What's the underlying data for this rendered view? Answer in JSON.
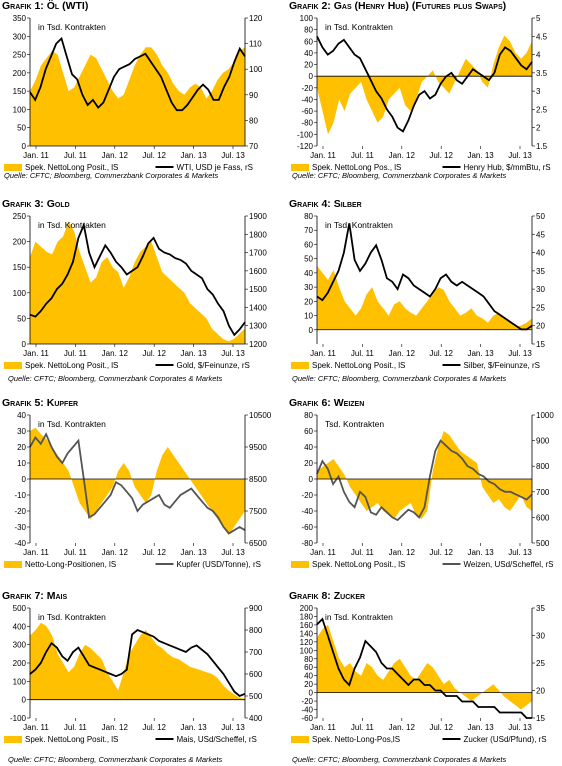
{
  "source_text": "Quelle: CFTC; Bloomberg, Commerzbank Corporates & Markets",
  "colors": {
    "area": "#ffc000",
    "line": "#000000",
    "line_alt": "#555555",
    "axis": "#000000"
  },
  "x_tick_labels": [
    "Jan. 11",
    "Jul. 11",
    "Jan. 12",
    "Jul. 12",
    "Jan. 13",
    "Jul. 13"
  ],
  "chart_data": [
    {
      "type": "area",
      "title_prefix": "Grafik 1:",
      "title": "Öl (WTI)",
      "unit_label": "in Tsd. Kontrakten",
      "ylim_left": [
        0,
        350
      ],
      "yticks_left": [
        0,
        50,
        100,
        150,
        200,
        250,
        300,
        350
      ],
      "ylim_right": [
        70,
        120
      ],
      "yticks_right": [
        70,
        80,
        90,
        100,
        110,
        120
      ],
      "series": [
        {
          "name": "Spek. NettoLong Posit., lS",
          "axis": "left",
          "kind": "area",
          "values": [
            150,
            180,
            220,
            240,
            260,
            250,
            200,
            150,
            160,
            190,
            220,
            250,
            240,
            210,
            180,
            150,
            130,
            140,
            180,
            220,
            250,
            270,
            270,
            250,
            220,
            200,
            170,
            150,
            140,
            160,
            170,
            160,
            130,
            150,
            180,
            200,
            210,
            230,
            260,
            270
          ]
        },
        {
          "name": "WTI, USD je Fass, rS",
          "axis": "right",
          "kind": "line",
          "values": [
            91,
            88,
            93,
            100,
            105,
            110,
            112,
            105,
            98,
            96,
            90,
            86,
            88,
            85,
            87,
            92,
            97,
            100,
            101,
            102,
            104,
            105,
            106,
            103,
            100,
            97,
            92,
            87,
            84,
            84,
            86,
            89,
            92,
            94,
            92,
            88,
            88,
            93,
            97,
            103,
            108,
            105
          ]
        }
      ]
    },
    {
      "type": "area",
      "title_prefix": "Grafik 2:",
      "title": "Gas (Henry Hub) (Futures plus Swaps)",
      "unit_label": "in Tsd. Kontrakten",
      "ylim_left": [
        -120,
        100
      ],
      "yticks_left": [
        -120,
        -100,
        -80,
        -60,
        -40,
        -20,
        0,
        20,
        40,
        60,
        80,
        100
      ],
      "ylim_right": [
        1.5,
        5.0
      ],
      "yticks_right": [
        1.5,
        2.0,
        2.5,
        3.0,
        3.5,
        4.0,
        4.5,
        5.0
      ],
      "series": [
        {
          "name": "Spek. NettoLong Pos., lS",
          "axis": "left",
          "kind": "area",
          "values": [
            -20,
            -60,
            -100,
            -80,
            -40,
            -60,
            -30,
            -20,
            -10,
            -40,
            -60,
            -80,
            -70,
            -40,
            -30,
            -20,
            -50,
            -60,
            -40,
            -10,
            0,
            10,
            -10,
            -20,
            -30,
            -10,
            10,
            30,
            20,
            10,
            -10,
            -20,
            20,
            50,
            70,
            60,
            40,
            30,
            40,
            60
          ]
        },
        {
          "name": "Henry Hub, $/mmBtu, rS",
          "axis": "right",
          "kind": "line",
          "values": [
            4.5,
            4.2,
            4.0,
            4.1,
            4.3,
            4.4,
            4.2,
            4.0,
            3.9,
            3.6,
            3.3,
            3.0,
            2.8,
            2.5,
            2.3,
            2.0,
            1.9,
            2.2,
            2.6,
            2.9,
            3.0,
            2.8,
            2.9,
            3.2,
            3.4,
            3.5,
            3.3,
            3.2,
            3.4,
            3.6,
            3.5,
            3.4,
            3.3,
            3.5,
            4.0,
            4.2,
            4.1,
            3.9,
            3.7,
            3.6,
            3.8
          ]
        }
      ]
    },
    {
      "type": "area",
      "title_prefix": "Grafik 3:",
      "title": "Gold",
      "unit_label": "in Tsd. Kontrakten",
      "ylim_left": [
        0,
        250
      ],
      "yticks_left": [
        0,
        50,
        100,
        150,
        200,
        250
      ],
      "ylim_right": [
        1200,
        1900
      ],
      "yticks_right": [
        1200,
        1300,
        1400,
        1500,
        1600,
        1700,
        1800,
        1900
      ],
      "series": [
        {
          "name": "Spek. NettoLong Posit., lS",
          "axis": "left",
          "kind": "area",
          "values": [
            170,
            200,
            190,
            180,
            175,
            200,
            210,
            240,
            220,
            180,
            150,
            120,
            130,
            160,
            170,
            150,
            140,
            110,
            130,
            160,
            180,
            190,
            200,
            170,
            140,
            130,
            120,
            110,
            100,
            80,
            70,
            60,
            50,
            30,
            20,
            10,
            5,
            10,
            20,
            30
          ]
        },
        {
          "name": "Gold, $/Feinunze, rS",
          "axis": "right",
          "kind": "line",
          "values": [
            1360,
            1350,
            1380,
            1420,
            1450,
            1500,
            1530,
            1580,
            1650,
            1780,
            1850,
            1700,
            1620,
            1680,
            1740,
            1700,
            1650,
            1620,
            1580,
            1600,
            1620,
            1680,
            1750,
            1780,
            1720,
            1700,
            1690,
            1670,
            1660,
            1640,
            1600,
            1580,
            1560,
            1500,
            1470,
            1420,
            1380,
            1300,
            1250,
            1280,
            1320
          ]
        }
      ]
    },
    {
      "type": "area",
      "title_prefix": "Grafik 4:",
      "title": "Silber",
      "unit_label": "in Tsd. Kontrakten",
      "ylim_left": [
        -10,
        80
      ],
      "yticks_left": [
        0,
        10,
        20,
        30,
        40,
        50,
        60,
        70,
        80
      ],
      "ylim_right": [
        15,
        50
      ],
      "yticks_right": [
        15,
        20,
        25,
        30,
        35,
        40,
        45,
        50
      ],
      "series": [
        {
          "name": "Spek. NettoLong Posit., lS",
          "axis": "left",
          "kind": "area",
          "values": [
            45,
            40,
            35,
            42,
            30,
            20,
            15,
            10,
            15,
            25,
            30,
            20,
            15,
            10,
            18,
            20,
            15,
            12,
            10,
            15,
            20,
            25,
            30,
            28,
            20,
            15,
            10,
            12,
            15,
            10,
            8,
            5,
            10,
            12,
            8,
            5,
            2,
            3,
            5,
            8
          ]
        },
        {
          "name": "Silber, $/Feinunze, rS",
          "axis": "right",
          "kind": "line",
          "values": [
            28,
            27,
            29,
            32,
            35,
            40,
            48,
            38,
            35,
            37,
            40,
            42,
            38,
            33,
            32,
            30,
            34,
            33,
            31,
            30,
            29,
            28,
            30,
            33,
            34,
            32,
            31,
            32,
            31,
            30,
            29,
            28,
            26,
            24,
            23,
            22,
            21,
            20,
            19,
            19,
            20
          ]
        }
      ]
    },
    {
      "type": "area",
      "title_prefix": "Grafik 5:",
      "title": "Kupfer",
      "unit_label": "in Tsd. Kontrakten",
      "ylim_left": [
        -40,
        40
      ],
      "yticks_left": [
        -40,
        -30,
        -20,
        -10,
        0,
        10,
        20,
        30,
        40
      ],
      "ylim_right": [
        6500,
        10500
      ],
      "yticks_right": [
        6500,
        7500,
        8500,
        9500,
        10500
      ],
      "series": [
        {
          "name": "Netto-Long-Positionen, lS",
          "axis": "left",
          "kind": "area",
          "values": [
            30,
            32,
            28,
            25,
            20,
            15,
            10,
            5,
            -5,
            -15,
            -20,
            -25,
            -20,
            -15,
            -10,
            -5,
            5,
            10,
            5,
            -5,
            -10,
            -15,
            -10,
            5,
            15,
            20,
            15,
            10,
            5,
            0,
            -5,
            -10,
            -15,
            -20,
            -25,
            -30,
            -35,
            -30,
            -25,
            -20
          ]
        },
        {
          "name": "Kupfer (USD/Tonne), rS",
          "axis": "right",
          "kind": "line",
          "values": [
            9500,
            9800,
            9600,
            9900,
            9500,
            9200,
            9000,
            9300,
            9500,
            9700,
            8500,
            7300,
            7400,
            7600,
            7800,
            8000,
            8400,
            8300,
            8100,
            7900,
            7500,
            7700,
            7800,
            7900,
            8000,
            7700,
            7600,
            7800,
            8000,
            8100,
            8200,
            8000,
            7800,
            7600,
            7500,
            7300,
            7000,
            6800,
            6900,
            7000,
            6900
          ]
        }
      ]
    },
    {
      "type": "area",
      "title_prefix": "Grafik 6:",
      "title": "Weizen",
      "unit_label": "Tsd. Kontrakten",
      "ylim_left": [
        -80,
        80
      ],
      "yticks_left": [
        -80,
        -60,
        -40,
        -20,
        0,
        20,
        40,
        60,
        80
      ],
      "ylim_right": [
        500,
        1000
      ],
      "yticks_right": [
        500,
        600,
        700,
        800,
        900,
        1000
      ],
      "series": [
        {
          "name": "Spek. NettoLong Posit., lS",
          "axis": "left",
          "kind": "area",
          "values": [
            10,
            15,
            20,
            25,
            15,
            5,
            -10,
            -20,
            -30,
            -40,
            -35,
            -30,
            -40,
            -45,
            -50,
            -40,
            -35,
            -30,
            -45,
            -50,
            -40,
            10,
            40,
            60,
            55,
            45,
            35,
            30,
            25,
            20,
            -10,
            -20,
            -30,
            -25,
            -35,
            -40,
            -30,
            -20,
            -35,
            -40
          ]
        },
        {
          "name": "Weizen, USd/Scheffel, rS",
          "axis": "right",
          "kind": "line",
          "values": [
            770,
            820,
            790,
            730,
            760,
            700,
            660,
            640,
            700,
            680,
            620,
            610,
            640,
            620,
            600,
            590,
            610,
            630,
            620,
            600,
            640,
            760,
            860,
            900,
            880,
            860,
            850,
            830,
            800,
            790,
            770,
            760,
            740,
            730,
            710,
            700,
            700,
            690,
            680,
            670,
            690
          ]
        }
      ]
    },
    {
      "type": "area",
      "title_prefix": "Grafik 7:",
      "title": "Mais",
      "unit_label": "in Tsd. Kontrakten",
      "ylim_left": [
        -100,
        500
      ],
      "yticks_left": [
        -100,
        0,
        100,
        200,
        300,
        400,
        500
      ],
      "ylim_right": [
        400,
        900
      ],
      "yticks_right": [
        400,
        500,
        600,
        700,
        800,
        900
      ],
      "series": [
        {
          "name": "Spek. NettoLong Posit., lS",
          "axis": "left",
          "kind": "area",
          "values": [
            350,
            380,
            420,
            400,
            350,
            250,
            200,
            150,
            180,
            250,
            300,
            280,
            250,
            220,
            150,
            100,
            50,
            150,
            250,
            300,
            350,
            380,
            340,
            300,
            280,
            250,
            230,
            220,
            200,
            180,
            170,
            160,
            150,
            140,
            120,
            80,
            50,
            30,
            10,
            5
          ]
        },
        {
          "name": "Mais, USd/Scheffel, rS",
          "axis": "right",
          "kind": "line",
          "values": [
            600,
            620,
            650,
            700,
            740,
            720,
            680,
            660,
            700,
            720,
            680,
            640,
            630,
            620,
            610,
            600,
            590,
            600,
            620,
            780,
            800,
            790,
            780,
            770,
            750,
            740,
            730,
            720,
            710,
            700,
            720,
            730,
            710,
            690,
            660,
            630,
            600,
            560,
            520,
            500,
            510
          ]
        }
      ]
    },
    {
      "type": "area",
      "title_prefix": "Grafik 8:",
      "title": "Zucker",
      "unit_label": "in Tsd. Kontrakten",
      "ylim_left": [
        -60,
        200
      ],
      "yticks_left": [
        -60,
        -40,
        -20,
        0,
        20,
        40,
        60,
        80,
        100,
        120,
        140,
        160,
        180,
        200
      ],
      "ylim_right": [
        15,
        35
      ],
      "yticks_right": [
        15,
        20,
        25,
        30,
        35
      ],
      "series": [
        {
          "name": "Spek. Netto-Long-Pos,lS",
          "axis": "left",
          "kind": "area",
          "values": [
            130,
            150,
            160,
            120,
            80,
            60,
            70,
            50,
            40,
            70,
            60,
            40,
            30,
            50,
            70,
            80,
            60,
            40,
            30,
            50,
            70,
            60,
            40,
            20,
            30,
            10,
            0,
            -10,
            -20,
            -10,
            0,
            10,
            20,
            5,
            -10,
            -20,
            -30,
            -40,
            -30,
            -20
          ]
        },
        {
          "name": "Zucker (USd/Pfund), rS",
          "axis": "right",
          "kind": "line",
          "values": [
            32,
            33,
            30,
            27,
            24,
            22,
            21,
            24,
            26,
            29,
            28,
            27,
            25,
            24,
            24,
            23,
            22,
            21,
            22,
            22,
            21,
            21,
            20,
            20,
            19,
            19,
            19,
            18,
            18,
            18,
            17,
            17,
            17,
            17,
            16,
            16,
            16,
            16,
            16,
            15,
            15
          ]
        }
      ]
    }
  ]
}
